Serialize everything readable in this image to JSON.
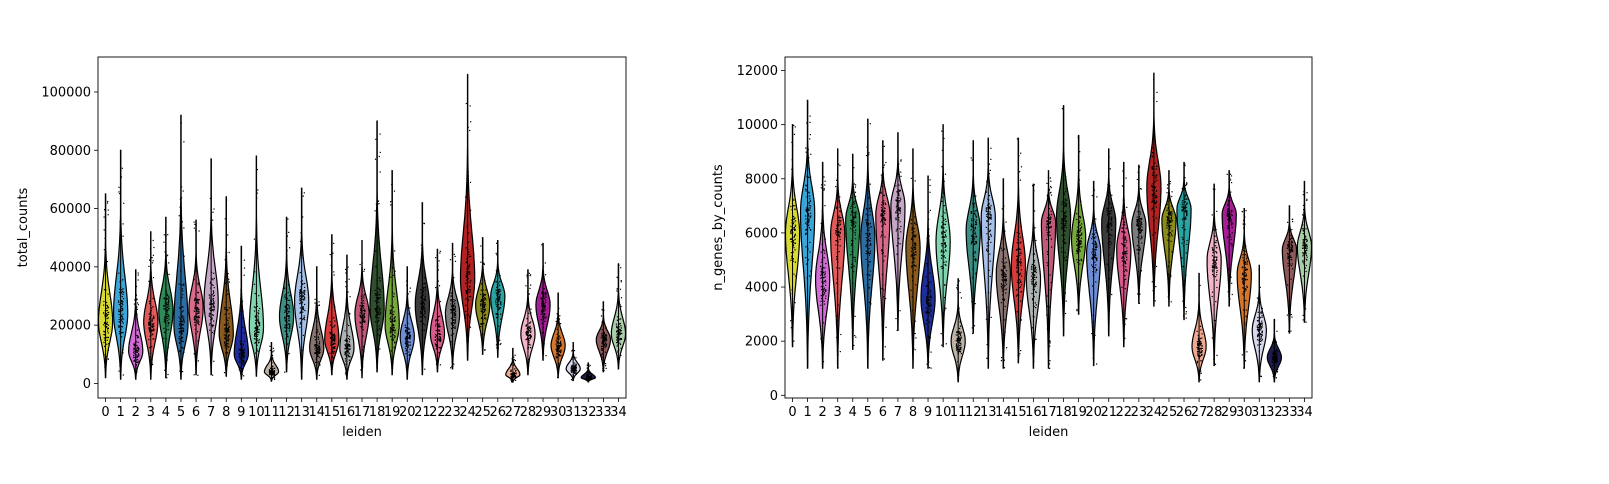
{
  "chart_data": [
    {
      "type": "violin",
      "xlabel": "leiden",
      "ylabel": "total_counts",
      "ylim": [
        -5000,
        112000
      ],
      "yticks": [
        0,
        20000,
        40000,
        60000,
        80000,
        100000
      ],
      "categories": [
        "0",
        "1",
        "2",
        "3",
        "4",
        "5",
        "6",
        "7",
        "8",
        "9",
        "10",
        "11",
        "12",
        "13",
        "14",
        "15",
        "16",
        "17",
        "18",
        "19",
        "20",
        "21",
        "22",
        "23",
        "24",
        "25",
        "26",
        "27",
        "28",
        "29",
        "30",
        "31",
        "32",
        "33",
        "34"
      ],
      "medians": [
        21000,
        24000,
        11000,
        21000,
        25000,
        20000,
        26000,
        28000,
        17000,
        10000,
        19000,
        4000,
        23000,
        28000,
        12000,
        15000,
        12000,
        24000,
        26000,
        20000,
        16000,
        27000,
        17000,
        24000,
        36000,
        27000,
        30000,
        3000,
        17000,
        27000,
        13000,
        5000,
        2000,
        15000,
        17000
      ],
      "mins": [
        2000,
        1500,
        1500,
        1500,
        2000,
        1500,
        3000,
        3000,
        2500,
        1500,
        2500,
        800,
        4000,
        1500,
        1500,
        3000,
        1500,
        2000,
        4000,
        3000,
        1500,
        3000,
        4000,
        5000,
        8000,
        10000,
        9000,
        500,
        3000,
        8000,
        2000,
        1000,
        500,
        4000,
        5000
      ],
      "maxs": [
        65000,
        80000,
        39000,
        52000,
        57000,
        92000,
        56000,
        77000,
        64000,
        47000,
        78000,
        14000,
        57000,
        67000,
        40000,
        51000,
        44000,
        49000,
        90000,
        73000,
        40000,
        62000,
        46000,
        48000,
        106000,
        50000,
        49000,
        12000,
        39000,
        48000,
        31000,
        14000,
        7000,
        28000,
        41000
      ],
      "colors": [
        "#d9d933",
        "#3aa5d8",
        "#d36bd6",
        "#e35a5a",
        "#2e8b57",
        "#2c6da3",
        "#d96a8a",
        "#c7a7c7",
        "#8a5a1e",
        "#1f2d9a",
        "#7fd6b0",
        "#bdb2a5",
        "#3c8f84",
        "#a7c1ea",
        "#8a7470",
        "#d93a3a",
        "#aeb3b3",
        "#c05a78",
        "#2f4f2f",
        "#76a83a",
        "#6e8fd6",
        "#3b3b3b",
        "#d85a8a",
        "#7c7c7c",
        "#b22222",
        "#8b8b1a",
        "#2aa3a3",
        "#f0a890",
        "#f4b5c8",
        "#a61e96",
        "#d7752a",
        "#d8d8ee",
        "#1d1d52",
        "#8c5a5a",
        "#a9cfa9"
      ]
    },
    {
      "type": "violin",
      "xlabel": "leiden",
      "ylabel": "n_genes_by_counts",
      "ylim": [
        -100,
        12500
      ],
      "yticks": [
        0,
        2000,
        4000,
        6000,
        8000,
        10000,
        12000
      ],
      "categories": [
        "0",
        "1",
        "2",
        "3",
        "4",
        "5",
        "6",
        "7",
        "8",
        "9",
        "10",
        "11",
        "12",
        "13",
        "14",
        "15",
        "16",
        "17",
        "18",
        "19",
        "20",
        "21",
        "22",
        "23",
        "24",
        "25",
        "26",
        "27",
        "28",
        "29",
        "30",
        "31",
        "32",
        "33",
        "34"
      ],
      "medians": [
        6000,
        6800,
        4300,
        6000,
        6500,
        5800,
        6700,
        7000,
        5500,
        3600,
        5700,
        2000,
        6100,
        6600,
        4500,
        4800,
        4300,
        6400,
        6600,
        5800,
        5300,
        6400,
        5400,
        6300,
        7700,
        6500,
        6900,
        1800,
        5000,
        6700,
        4500,
        2400,
        1400,
        5400,
        5500
      ],
      "mins": [
        1800,
        1000,
        1000,
        1000,
        1700,
        1000,
        1300,
        2400,
        1000,
        1000,
        1800,
        500,
        2300,
        1000,
        1000,
        1200,
        1000,
        1000,
        2200,
        3000,
        1100,
        2200,
        1800,
        3400,
        3300,
        3300,
        2800,
        500,
        1100,
        3300,
        1000,
        500,
        500,
        2300,
        2700
      ],
      "maxs": [
        10000,
        10900,
        8600,
        9100,
        8900,
        10200,
        9400,
        9700,
        9100,
        8100,
        10000,
        4300,
        9400,
        9500,
        8000,
        9500,
        7800,
        8300,
        10700,
        9600,
        7900,
        9100,
        8600,
        8500,
        11900,
        8300,
        8600,
        4500,
        7800,
        8300,
        6900,
        4800,
        2800,
        7000,
        7900
      ],
      "colors": [
        "#d9d933",
        "#3aa5d8",
        "#d36bd6",
        "#e35a5a",
        "#2e8b57",
        "#2c6da3",
        "#d96a8a",
        "#c7a7c7",
        "#8a5a1e",
        "#1f2d9a",
        "#7fd6b0",
        "#bdb2a5",
        "#3c8f84",
        "#a7c1ea",
        "#8a7470",
        "#d93a3a",
        "#aeb3b3",
        "#c05a78",
        "#2f4f2f",
        "#76a83a",
        "#6e8fd6",
        "#3b3b3b",
        "#d85a8a",
        "#7c7c7c",
        "#b22222",
        "#8b8b1a",
        "#2aa3a3",
        "#f0a890",
        "#f4b5c8",
        "#a61e96",
        "#d7752a",
        "#d8d8ee",
        "#1d1d52",
        "#8c5a5a",
        "#a9cfa9"
      ]
    }
  ]
}
